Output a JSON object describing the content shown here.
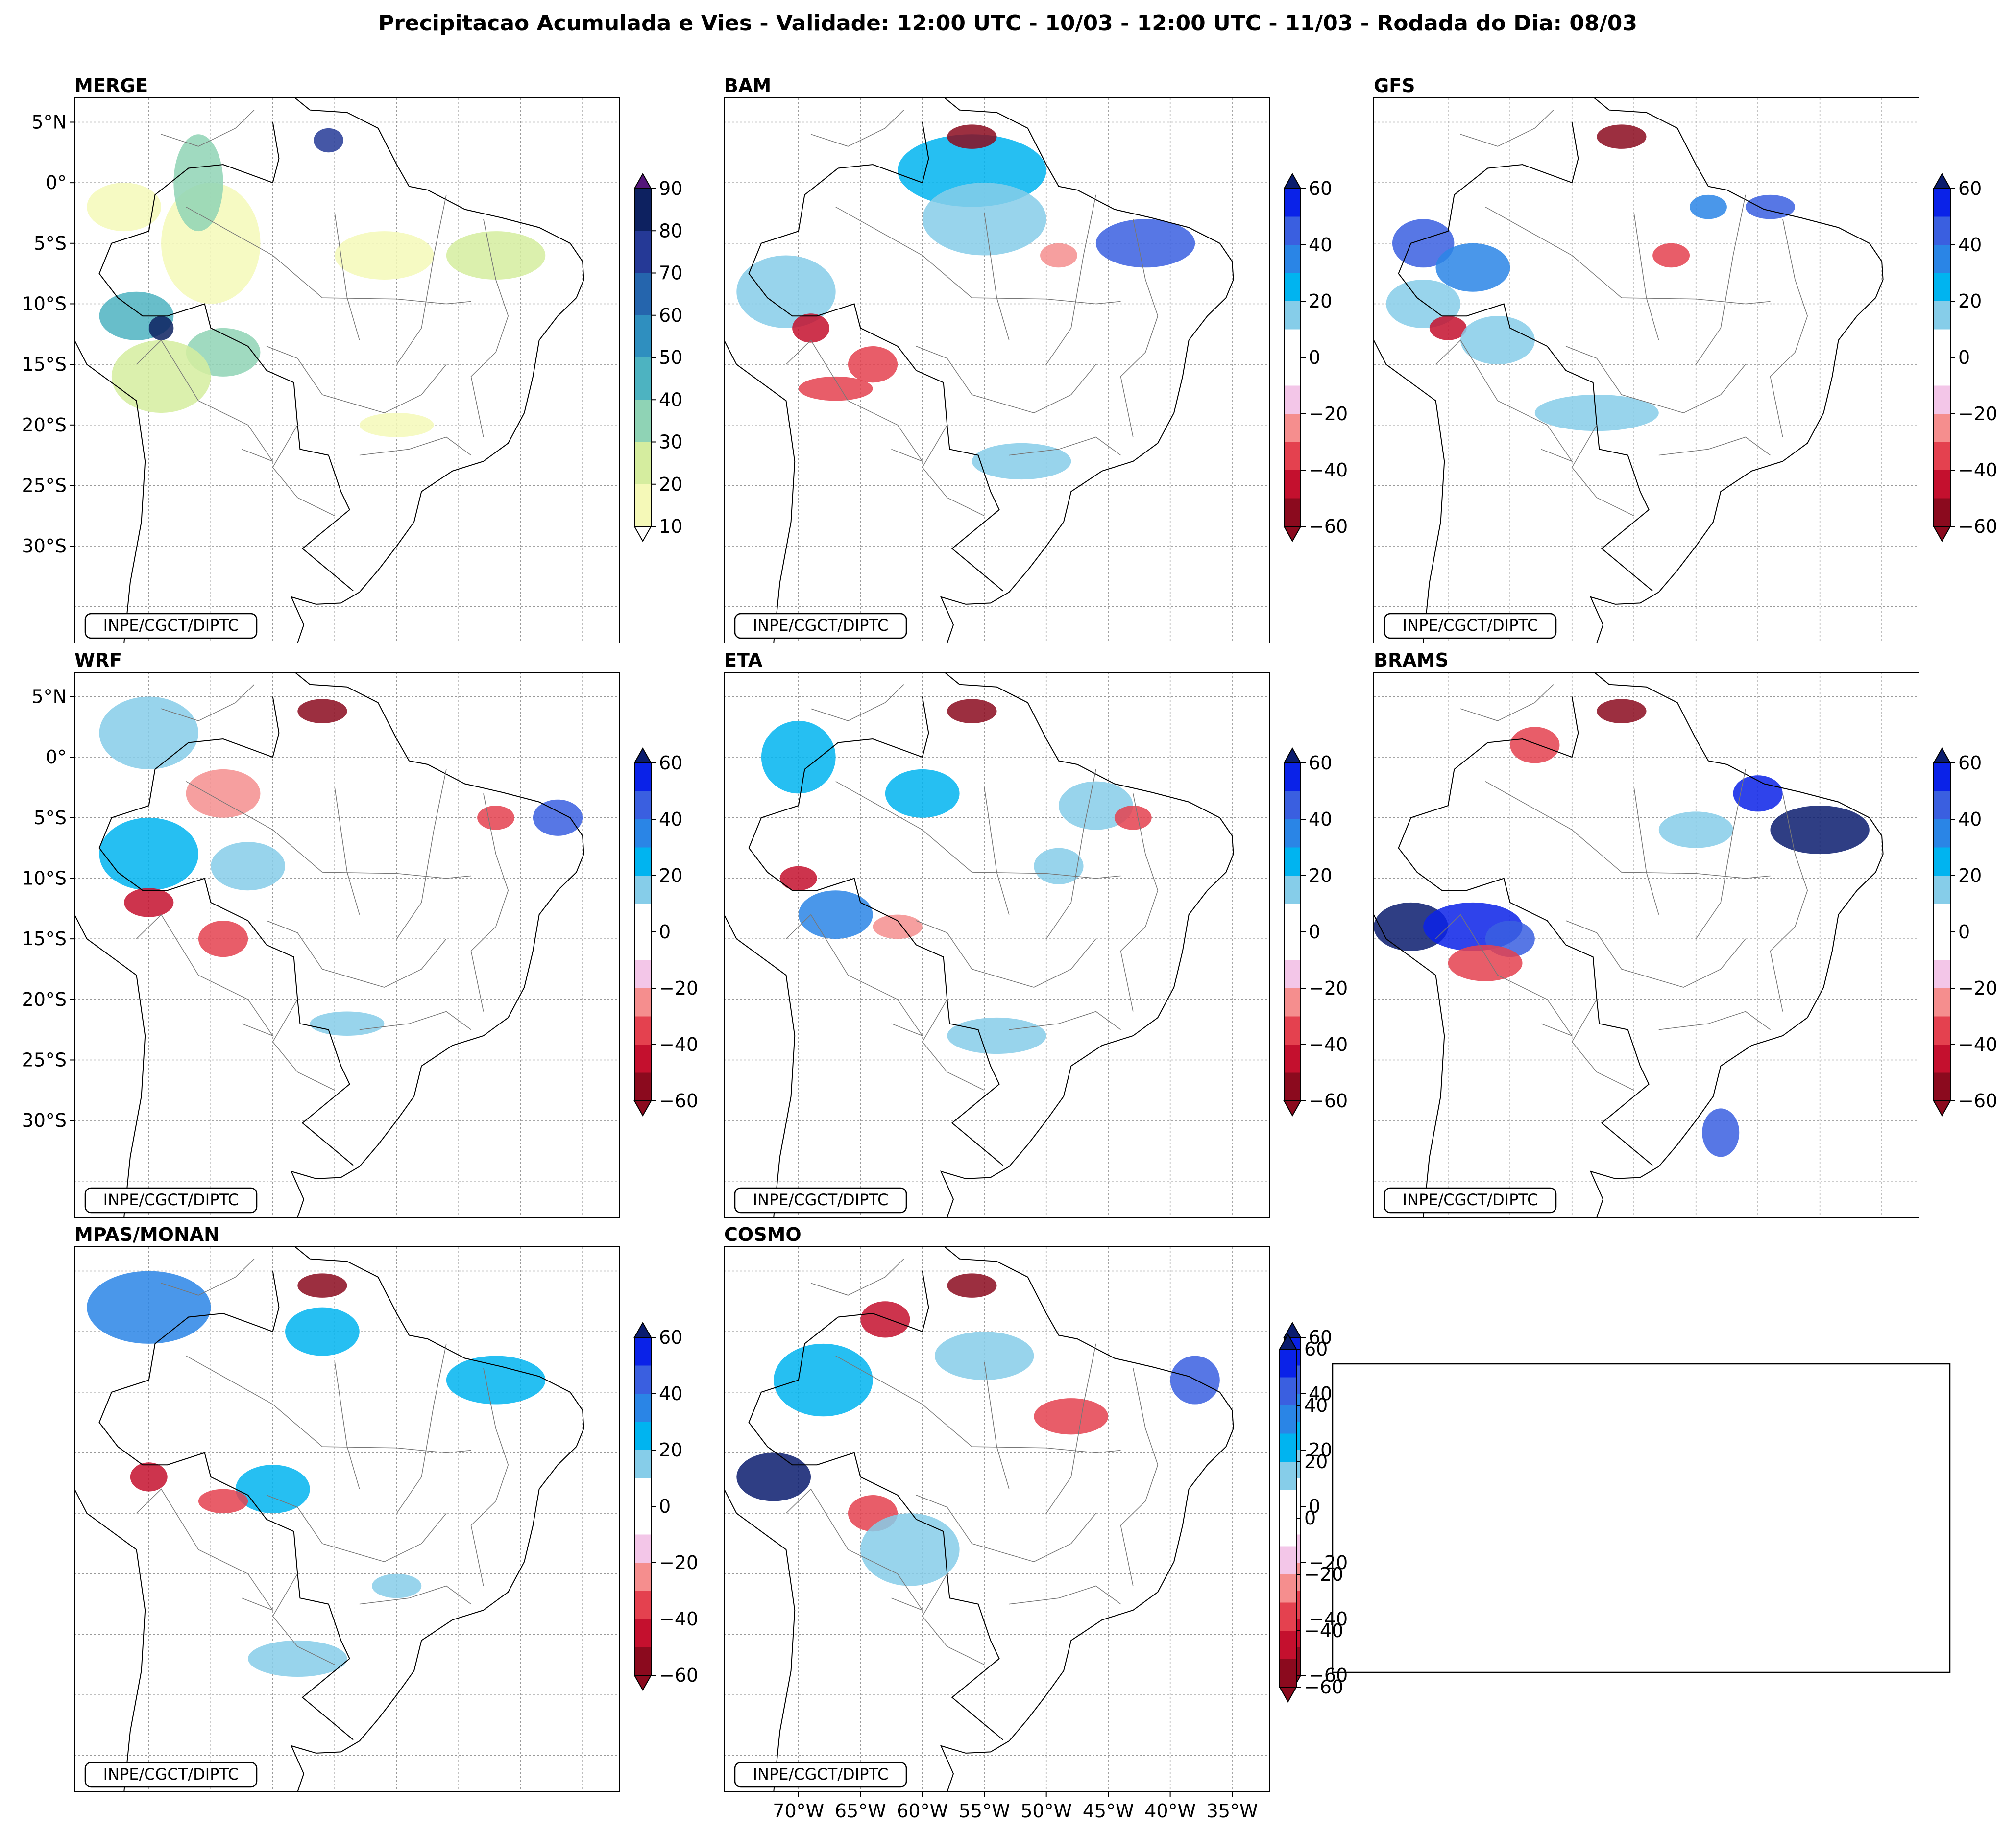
{
  "figure": {
    "title": "Precipitacao Acumulada e Vies - Validade: 12:00 UTC - 10/03 - 12:00 UTC - 11/03 - Rodada do Dia: 08/03",
    "credit": "INPE/CGCT/DIPTC"
  },
  "panels": [
    {
      "id": "merge",
      "label": "MERGE",
      "colorbar": "precip",
      "lat_labels": true,
      "lon_labels": false
    },
    {
      "id": "bam",
      "label": "BAM",
      "colorbar": "bias",
      "lat_labels": false,
      "lon_labels": false
    },
    {
      "id": "gfs",
      "label": "GFS",
      "colorbar": "bias",
      "lat_labels": false,
      "lon_labels": false
    },
    {
      "id": "wrf",
      "label": "WRF",
      "colorbar": "bias",
      "lat_labels": true,
      "lon_labels": false
    },
    {
      "id": "eta",
      "label": "ETA",
      "colorbar": "bias",
      "lat_labels": false,
      "lon_labels": false
    },
    {
      "id": "brams",
      "label": "BRAMS",
      "colorbar": "bias",
      "lat_labels": false,
      "lon_labels": false
    },
    {
      "id": "mpas",
      "label": "MPAS/MONAN",
      "colorbar": "bias",
      "lat_labels": false,
      "lon_labels": false
    },
    {
      "id": "cosmo",
      "label": "COSMO",
      "colorbar": "bias",
      "lat_labels": false,
      "lon_labels": true
    }
  ],
  "lat_ticks": [
    "5°N",
    "0°",
    "5°S",
    "10°S",
    "15°S",
    "20°S",
    "25°S",
    "30°S"
  ],
  "lon_ticks": [
    "70°W",
    "65°W",
    "60°W",
    "55°W",
    "50°W",
    "45°W",
    "40°W",
    "35°W"
  ],
  "colorbars": {
    "precip": {
      "ticks": [
        "90",
        "80",
        "70",
        "60",
        "50",
        "40",
        "30",
        "20",
        "10"
      ],
      "colors": [
        "#f5f9b8",
        "#d5ed9f",
        "#8fd3b5",
        "#4db3c1",
        "#2f8fbf",
        "#2565ad",
        "#253996",
        "#0d2160",
        "#54157a"
      ]
    },
    "bias": {
      "ticks": [
        "60",
        "40",
        "20",
        "0",
        "−20",
        "−40",
        "−60"
      ],
      "colors": [
        "#8b0a1e",
        "#c4102e",
        "#e4414f",
        "#f58e8e",
        "#f3c6e8",
        "#ffffff",
        "#ffffff",
        "#86cde9",
        "#00b4f0",
        "#2a85e6",
        "#3a5fe0",
        "#0a22e8",
        "#0a1c6e"
      ]
    }
  },
  "extra_colorbar": {
    "ticks": [
      "60",
      "40",
      "20",
      "0",
      "−20",
      "−40",
      "−60"
    ]
  }
}
